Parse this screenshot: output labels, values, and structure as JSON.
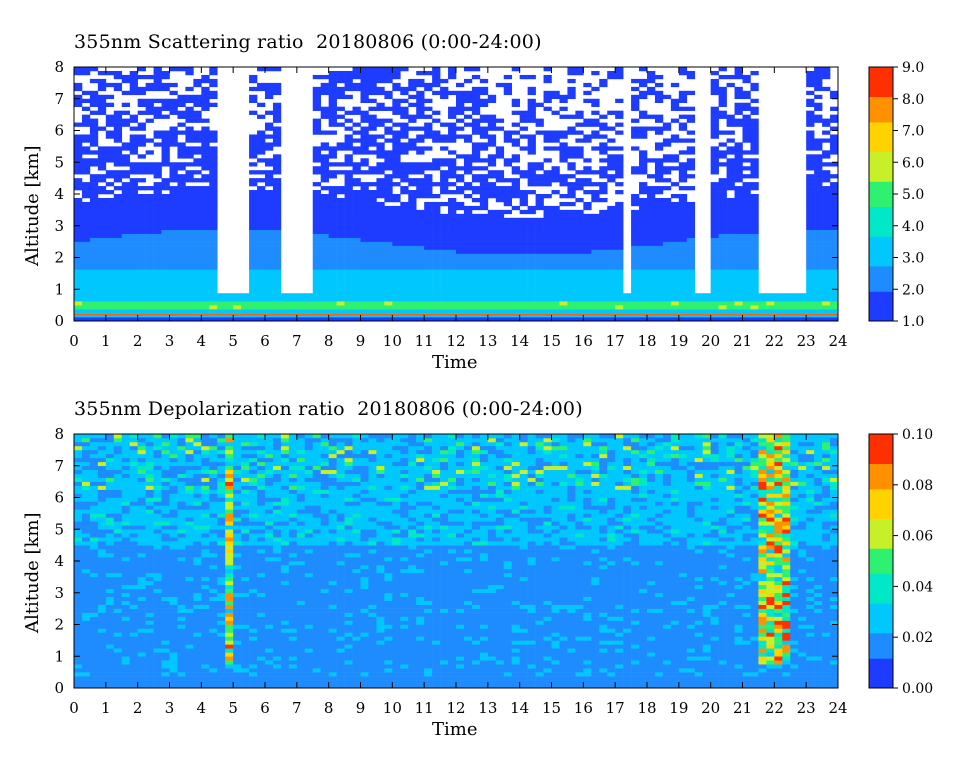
{
  "chart_data": [
    {
      "type": "heatmap",
      "title": "355nm Scattering ratio  20180806 (0:00-24:00)",
      "xlabel": "Time",
      "ylabel": "Altitude [km]",
      "xlim": [
        0,
        24
      ],
      "ylim": [
        0,
        8
      ],
      "x_ticks": [
        "0",
        "1",
        "2",
        "3",
        "4",
        "5",
        "6",
        "7",
        "8",
        "9",
        "10",
        "11",
        "12",
        "13",
        "14",
        "15",
        "16",
        "17",
        "18",
        "19",
        "20",
        "21",
        "22",
        "23",
        "24"
      ],
      "y_ticks": [
        "0",
        "1",
        "2",
        "3",
        "4",
        "5",
        "6",
        "7",
        "8"
      ],
      "colorbar": {
        "min": 1.0,
        "max": 9.0,
        "ticks": [
          "1.0",
          "2.0",
          "3.0",
          "4.0",
          "5.0",
          "6.0",
          "7.0",
          "8.0",
          "9.0"
        ],
        "colors": [
          "#1e3cff",
          "#1e8cff",
          "#00c8ff",
          "#00e8c8",
          "#30f070",
          "#c8f028",
          "#ffd200",
          "#ff9000",
          "#ff3000"
        ]
      },
      "features": {
        "boundary_layer_top_km": 2.5,
        "aerosol_layer_peak_km": [
          0.4,
          0.6
        ],
        "dense_cloud_times": [
          [
            4.5,
            5.5
          ],
          [
            6.4,
            7.6
          ],
          [
            17.2,
            17.5
          ],
          [
            19.5,
            20.0
          ],
          [
            21.4,
            23.0
          ]
        ]
      }
    },
    {
      "type": "heatmap",
      "title": "355nm Depolarization ratio  20180806 (0:00-24:00)",
      "xlabel": "Time",
      "ylabel": "Altitude [km]",
      "xlim": [
        0,
        24
      ],
      "ylim": [
        0,
        8
      ],
      "x_ticks": [
        "0",
        "1",
        "2",
        "3",
        "4",
        "5",
        "6",
        "7",
        "8",
        "9",
        "10",
        "11",
        "12",
        "13",
        "14",
        "15",
        "16",
        "17",
        "18",
        "19",
        "20",
        "21",
        "22",
        "23",
        "24"
      ],
      "y_ticks": [
        "0",
        "1",
        "2",
        "3",
        "4",
        "5",
        "6",
        "7",
        "8"
      ],
      "colorbar": {
        "min": 0.0,
        "max": 0.1,
        "ticks": [
          "0.00",
          "0.02",
          "0.04",
          "0.06",
          "0.08",
          "0.10"
        ],
        "colors": [
          "#1e3cff",
          "#1e8cff",
          "#00c8ff",
          "#00e8c8",
          "#30f070",
          "#c8f028",
          "#ffd200",
          "#ff9000",
          "#ff3000"
        ]
      },
      "features": {
        "high_depol_columns": [
          [
            4.8,
            5.1
          ],
          [
            21.5,
            22.6
          ]
        ]
      }
    }
  ]
}
